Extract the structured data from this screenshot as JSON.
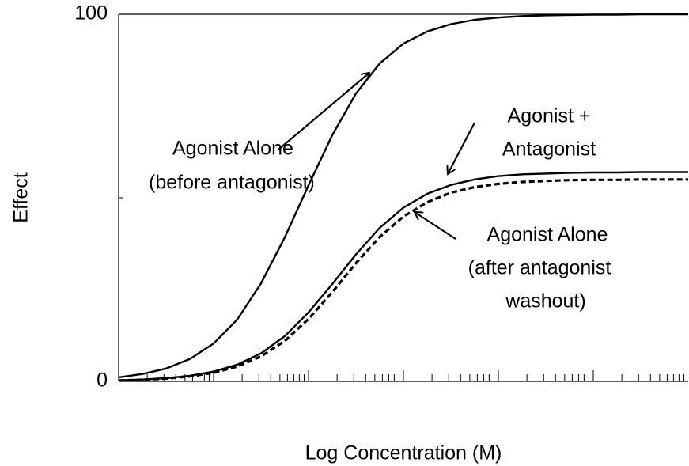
{
  "chart_data": {
    "type": "line",
    "x_label": "Log Concentration (M)",
    "y_label": "Effect",
    "xscale": "log",
    "xlim": [
      1e-09,
      0.001
    ],
    "ylim": [
      0,
      100
    ],
    "yticks": [
      0,
      100
    ],
    "x": [
      1e-09,
      1.78e-09,
      3.16e-09,
      5.62e-09,
      1e-08,
      1.78e-08,
      3.16e-08,
      5.62e-08,
      1e-07,
      1.78e-07,
      3.16e-07,
      5.62e-07,
      1e-06,
      1.78e-06,
      3.16e-06,
      5.62e-06,
      1e-05,
      1.78e-05,
      3.16e-05,
      5.62e-05,
      0.0001,
      0.000178,
      0.000316,
      0.000562,
      0.001
    ],
    "series": [
      {
        "color": "#000000",
        "dash": false,
        "values": [
          1.1,
          2.0,
          3.5,
          6.1,
          10.3,
          16.9,
          26.7,
          39.2,
          53.4,
          67.1,
          78.4,
          86.6,
          92.0,
          95.3,
          97.3,
          98.5,
          99.1,
          99.5,
          99.7,
          99.8,
          99.9,
          99.9,
          100,
          100,
          100
        ]
      },
      {
        "color": "#000000",
        "dash": false,
        "values": [
          0.28,
          0.49,
          0.87,
          1.53,
          2.66,
          4.56,
          7.64,
          12.3,
          18.8,
          26.5,
          34.6,
          41.8,
          47.3,
          51.1,
          53.5,
          55.0,
          55.9,
          56.4,
          56.6,
          56.8,
          56.9,
          56.9,
          57,
          57,
          57
        ]
      },
      {
        "color": "#000000",
        "dash": true,
        "values": [
          0.24,
          0.43,
          0.77,
          1.35,
          2.35,
          4.05,
          6.81,
          11.0,
          17.0,
          24.3,
          32.2,
          39.3,
          44.9,
          48.8,
          51.4,
          52.9,
          53.8,
          54.3,
          54.6,
          54.8,
          54.9,
          54.9,
          55,
          55,
          55
        ]
      }
    ],
    "annotations": [
      "Agonist Alone",
      "(before antagonist)",
      "Agonist +",
      "Antagonist",
      "Agonist Alone",
      "(after antagonist",
      "washout)"
    ]
  }
}
